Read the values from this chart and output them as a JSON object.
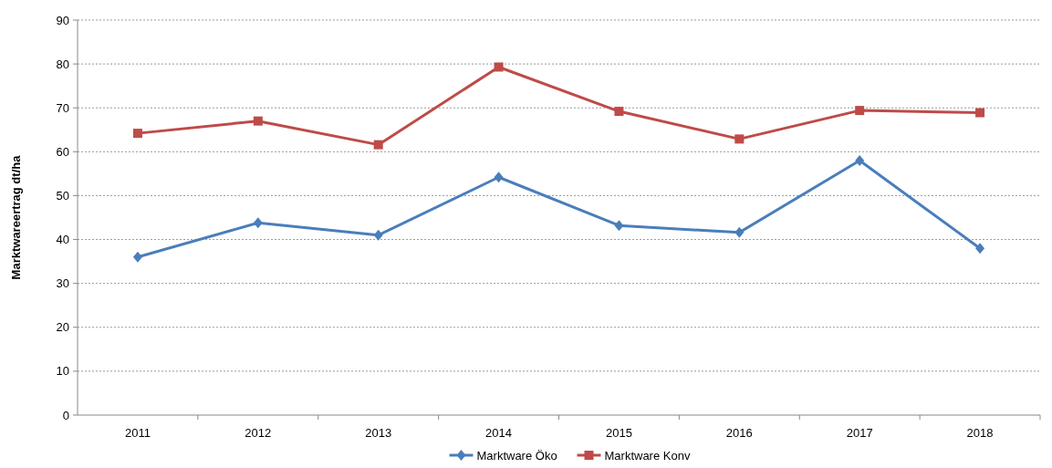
{
  "chart_data": {
    "type": "line",
    "ylabel": "Marktwareertrag dt/ha",
    "categories": [
      "2011",
      "2012",
      "2013",
      "2014",
      "2015",
      "2016",
      "2017",
      "2018"
    ],
    "series": [
      {
        "name": "Marktware Öko",
        "color": "#4a7ebb",
        "marker": "diamond",
        "values": [
          36.0,
          43.8,
          41.0,
          54.2,
          43.2,
          41.6,
          58.0,
          38.0
        ]
      },
      {
        "name": "Marktware Konv",
        "color": "#be4b48",
        "marker": "square",
        "values": [
          64.2,
          67.0,
          61.6,
          79.3,
          69.2,
          62.9,
          69.4,
          68.9
        ]
      }
    ],
    "ylim": [
      0,
      90
    ],
    "yticks": [
      0,
      10,
      20,
      30,
      40,
      50,
      60,
      70,
      80,
      90
    ],
    "grid": "y",
    "legend": "bottom"
  }
}
